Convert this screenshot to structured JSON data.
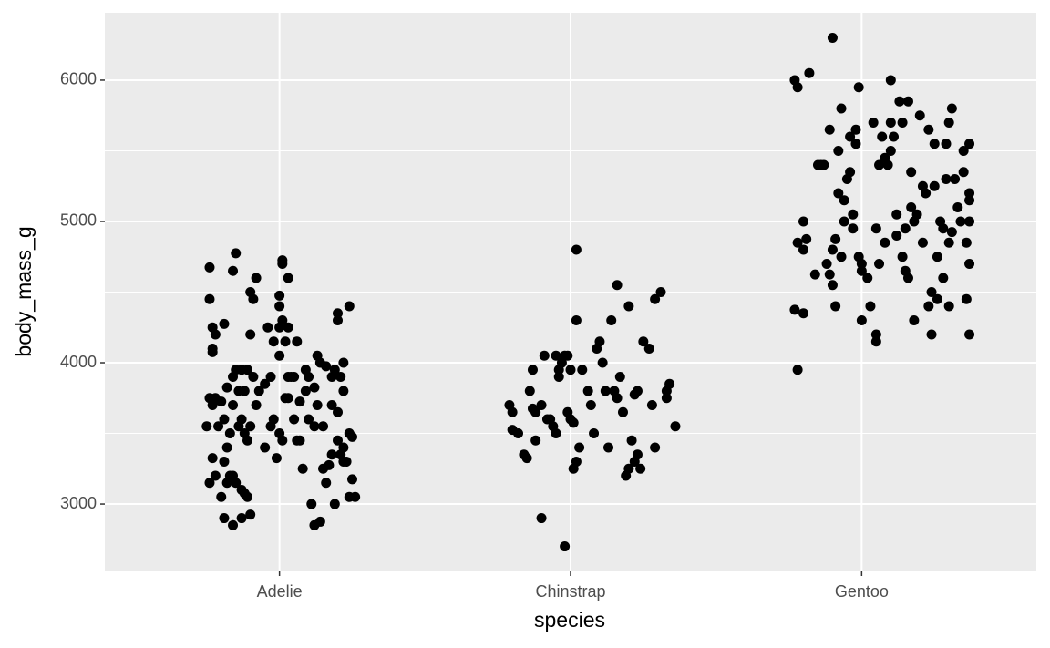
{
  "chart_data": {
    "type": "scatter",
    "x_label": "species",
    "y_label": "body_mass_g",
    "xlim": [
      0.4,
      3.6
    ],
    "ylim": [
      2523,
      6477
    ],
    "xticks": [
      {
        "value": 1,
        "label": "Adelie"
      },
      {
        "value": 2,
        "label": "Chinstrap"
      },
      {
        "value": 3,
        "label": "Gentoo"
      }
    ],
    "yticks": [
      3000,
      4000,
      5000,
      6000
    ],
    "minor_yticks": [
      3500,
      4500,
      5500
    ],
    "grid": true,
    "color": "#000000",
    "x": [
      0.76,
      0.76,
      0.77,
      0.77,
      0.77,
      0.78,
      0.81,
      0.85,
      0.84,
      0.9,
      0.91,
      0.92,
      0.9,
      1.01,
      1.01,
      1.03,
      1.0,
      1.0,
      1.01,
      1.0,
      0.96,
      1.03,
      0.98,
      1.02,
      1.06,
      1.0,
      1.2,
      1.2,
      1.24,
      1.13,
      1.14,
      1.22,
      0.76,
      0.77,
      0.78,
      0.8,
      0.75,
      0.79,
      0.77,
      0.76,
      0.78,
      0.81,
      0.8,
      0.83,
      0.82,
      0.84,
      0.85,
      0.87,
      0.88,
      0.89,
      0.81,
      0.84,
      0.87,
      0.9,
      0.82,
      0.83,
      0.81,
      0.84,
      0.82,
      0.85,
      0.87,
      0.89,
      0.84,
      0.86,
      0.88,
      0.86,
      0.87,
      0.88,
      0.89,
      0.9,
      0.91,
      0.92,
      0.93,
      0.95,
      0.97,
      0.98,
      0.99,
      1.0,
      1.01,
      1.02,
      1.03,
      1.04,
      1.05,
      1.06,
      1.07,
      1.08,
      1.09,
      1.1,
      1.11,
      1.12,
      1.1,
      1.13,
      1.15,
      1.16,
      1.14,
      1.12,
      1.17,
      1.18,
      1.19,
      1.2,
      1.21,
      1.22,
      1.23,
      1.24,
      1.25,
      1.24,
      1.26,
      1.25,
      1.21,
      1.22,
      1.18,
      1.19,
      1.16,
      1.12,
      1.09,
      1.05,
      1.03,
      0.97,
      0.95,
      1.07,
      1.15,
      1.18,
      1.22,
      1.2,
      1.79,
      1.8,
      1.8,
      1.82,
      1.84,
      1.85,
      1.86,
      1.87,
      1.87,
      1.88,
      1.88,
      1.9,
      1.91,
      1.92,
      1.93,
      1.94,
      1.95,
      1.95,
      1.96,
      1.96,
      1.97,
      1.98,
      1.99,
      2.0,
      1.99,
      2.0,
      2.01,
      2.02,
      2.01,
      2.02,
      2.03,
      2.04,
      2.06,
      2.07,
      2.08,
      1.9,
      1.98,
      2.09,
      2.1,
      2.11,
      2.12,
      2.13,
      2.14,
      2.15,
      2.16,
      2.17,
      2.18,
      2.19,
      2.2,
      2.21,
      2.22,
      2.22,
      2.23,
      2.24,
      2.23,
      2.25,
      2.27,
      2.28,
      2.29,
      2.29,
      2.31,
      2.33,
      2.33,
      2.34,
      2.36,
      2.02,
      2.16,
      2.2,
      2.77,
      2.78,
      2.78,
      2.8,
      2.8,
      2.8,
      2.81,
      2.82,
      2.77,
      2.78,
      2.84,
      2.85,
      2.87,
      2.88,
      2.89,
      2.89,
      2.9,
      2.9,
      2.9,
      2.91,
      2.91,
      2.92,
      2.92,
      2.93,
      2.94,
      2.93,
      2.94,
      2.95,
      2.96,
      2.97,
      2.97,
      2.98,
      2.98,
      2.99,
      2.99,
      3.0,
      3.0,
      3.0,
      3.02,
      3.03,
      3.04,
      3.05,
      3.05,
      3.06,
      3.06,
      3.07,
      3.08,
      3.08,
      3.09,
      3.1,
      3.1,
      3.11,
      3.12,
      3.12,
      3.13,
      3.14,
      3.14,
      3.15,
      3.15,
      3.16,
      3.16,
      3.17,
      3.17,
      3.18,
      3.18,
      3.19,
      3.2,
      3.21,
      3.21,
      3.22,
      3.23,
      3.23,
      3.24,
      3.24,
      3.25,
      3.25,
      3.26,
      3.26,
      3.27,
      3.28,
      3.28,
      3.29,
      3.29,
      3.3,
      3.3,
      3.3,
      3.31,
      3.31,
      3.32,
      3.33,
      3.34,
      3.35,
      3.35,
      3.36,
      3.36,
      3.37,
      3.37,
      3.37,
      3.37,
      3.37,
      3.37,
      3.1,
      3.05,
      2.96,
      2.86
    ],
    "values": [
      4675,
      4450,
      4250,
      4100,
      4075,
      4200,
      4275,
      4775,
      4650,
      4500,
      4450,
      4600,
      4200,
      4725,
      4700,
      4600,
      4475,
      4400,
      4300,
      4250,
      4250,
      4250,
      4150,
      4150,
      4150,
      4050,
      4350,
      4300,
      4400,
      4050,
      4000,
      4000,
      3750,
      3700,
      3750,
      3725,
      3550,
      3550,
      3325,
      3150,
      3200,
      3300,
      3050,
      3200,
      3150,
      3200,
      3150,
      3100,
      3075,
      3050,
      2900,
      2850,
      2900,
      2925,
      3400,
      3500,
      3600,
      3700,
      3825,
      3950,
      3950,
      3950,
      3900,
      3800,
      3800,
      3550,
      3600,
      3500,
      3450,
      3550,
      3900,
      3700,
      3800,
      3400,
      3900,
      3600,
      3325,
      3500,
      3450,
      3750,
      3750,
      3900,
      3600,
      3450,
      3725,
      3250,
      3800,
      3600,
      3000,
      3550,
      3900,
      3700,
      3550,
      3150,
      2875,
      2850,
      3275,
      3700,
      3000,
      3650,
      3350,
      3400,
      3300,
      3500,
      3175,
      3050,
      3050,
      3475,
      3900,
      3800,
      3900,
      3950,
      3975,
      3825,
      3950,
      3900,
      3900,
      3550,
      3850,
      3450,
      3250,
      3350,
      3300,
      3450,
      3700,
      3650,
      3525,
      3500,
      3350,
      3325,
      3800,
      3675,
      3950,
      3650,
      3450,
      3700,
      4050,
      3600,
      3600,
      3550,
      3500,
      4050,
      3900,
      3950,
      4000,
      4050,
      4050,
      3950,
      3650,
      3600,
      3575,
      3300,
      3250,
      4300,
      3400,
      3950,
      3800,
      3700,
      3500,
      2900,
      2700,
      4100,
      4150,
      4000,
      3800,
      3400,
      4300,
      3800,
      3750,
      3900,
      3650,
      3200,
      3250,
      3450,
      3775,
      3300,
      3350,
      3250,
      3800,
      4150,
      4100,
      3700,
      3400,
      4450,
      4500,
      3800,
      3750,
      3850,
      3550,
      4800,
      4550,
      4400,
      4375,
      3950,
      4850,
      4350,
      5000,
      4800,
      4875,
      6050,
      6000,
      5950,
      4625,
      5400,
      5400,
      4700,
      4625,
      5650,
      6300,
      4550,
      4800,
      4875,
      4400,
      5200,
      5500,
      5800,
      5150,
      4750,
      5000,
      5300,
      5350,
      5050,
      4950,
      5650,
      5550,
      4750,
      5950,
      4650,
      4300,
      4700,
      4600,
      4400,
      5700,
      4200,
      4150,
      4700,
      5400,
      5600,
      4850,
      5450,
      5400,
      5500,
      6000,
      5600,
      4900,
      5050,
      5850,
      4750,
      5700,
      4950,
      4650,
      5850,
      4600,
      5350,
      5100,
      4300,
      5000,
      5050,
      5750,
      5250,
      4850,
      5200,
      5650,
      4400,
      4200,
      4500,
      5550,
      5250,
      4750,
      4450,
      5000,
      4600,
      4950,
      5550,
      5300,
      4400,
      5700,
      4850,
      5800,
      4925,
      5300,
      5100,
      5000,
      5350,
      5500,
      4450,
      4850,
      5000,
      5150,
      4700,
      4200,
      5550,
      5200,
      5700,
      4950,
      5600,
      5400
    ]
  }
}
